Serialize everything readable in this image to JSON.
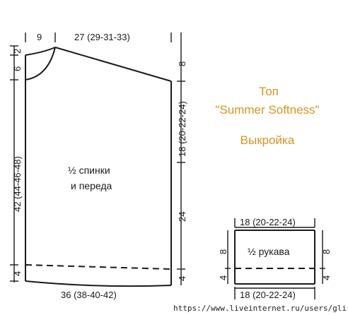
{
  "colors": {
    "title": "#d9931f",
    "lines": "#1a1a1a"
  },
  "title": {
    "line1": "Топ",
    "line2": "\"Summer Softness\"",
    "line3": "Выкройка"
  },
  "body_piece": {
    "label_line1": "½ спинки",
    "label_line2": "и переда",
    "top_neck": "9",
    "top_shoulder": "27 (29-31-33)",
    "bottom_width": "36 (38-40-42)",
    "left_top": "2",
    "left_neck": "6",
    "left_height": "42 (44-46-48)",
    "left_hem": "4",
    "right_shoulder": "8",
    "right_armhole": "18 (20-22-24)",
    "right_side": "24",
    "right_hem": "4"
  },
  "sleeve_piece": {
    "label": "½ рукава",
    "top_width": "18 (20-22-24)",
    "bottom_width": "18 (20-22-24)",
    "left_height": "8",
    "left_hem": "4",
    "right_height": "8",
    "right_hem": "4"
  },
  "watermark": "https://www.liveinternet.ru/users/glira/"
}
